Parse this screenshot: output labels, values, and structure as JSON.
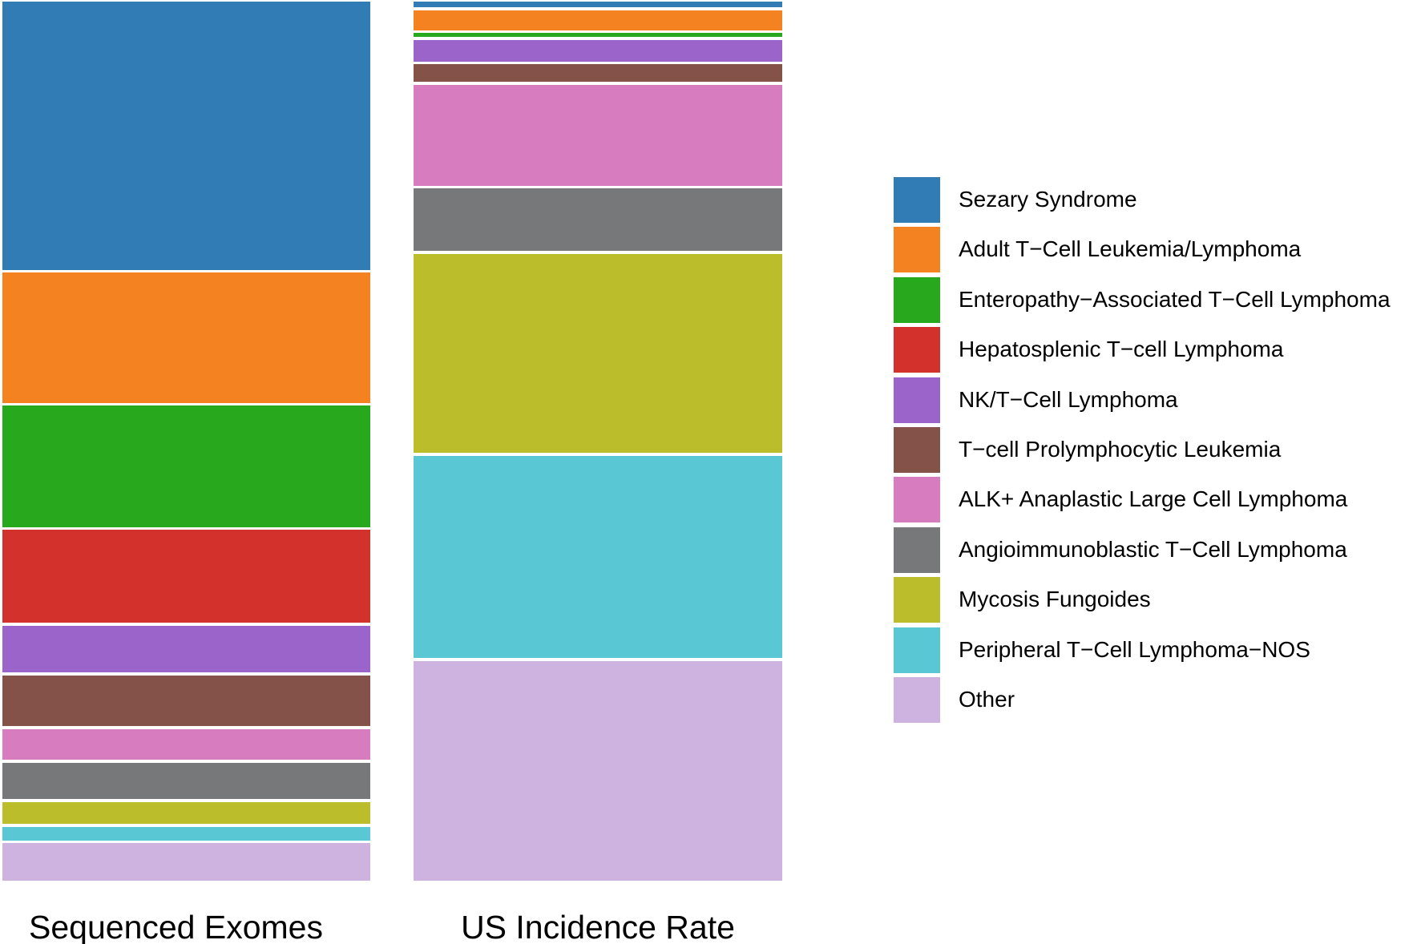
{
  "figure": {
    "background": "#ffffff",
    "text_color": "#000000",
    "column_labels": [
      "Sequenced Exomes",
      "US Incidence Rate"
    ]
  },
  "chart_data": {
    "type": "bar",
    "subtype": "100-percent-stacked-columns (mosaic comparison, no axes)",
    "title": "",
    "xlabel": "",
    "ylabel": "",
    "categories": [
      "Sequenced Exomes",
      "US Incidence Rate"
    ],
    "values_unit": "percent of column height",
    "stack_order": "top to bottom as listed",
    "legend_position": "right",
    "grid": false,
    "axes_visible": false,
    "segment_gap_color": "#ffffff",
    "series": [
      {
        "name": "Sezary Syndrome",
        "color": "#317CB4",
        "values": [
          31.5,
          0.7
        ]
      },
      {
        "name": "Adult T−Cell Leukemia/Lymphoma",
        "color": "#F58220",
        "values": [
          15.3,
          2.3
        ]
      },
      {
        "name": "Enteropathy−Associated T−Cell Lymphoma",
        "color": "#28A81C",
        "values": [
          14.3,
          0.5
        ]
      },
      {
        "name": "Hepatosplenic T−cell Lymphoma",
        "color": "#D3312C",
        "values": [
          10.9,
          0.0
        ]
      },
      {
        "name": "NK/T−Cell Lymphoma",
        "color": "#9B64CB",
        "values": [
          5.5,
          2.5
        ]
      },
      {
        "name": "T−cell Prolymphocytic Leukemia",
        "color": "#855249",
        "values": [
          6.0,
          2.1
        ]
      },
      {
        "name": "ALK+ Anaplastic Large Cell Lymphoma",
        "color": "#D77CBE",
        "values": [
          3.6,
          11.8
        ]
      },
      {
        "name": "Angioimmunoblastic T−Cell Lymphoma",
        "color": "#77787A",
        "values": [
          4.3,
          7.3
        ]
      },
      {
        "name": "Mycosis Fungoides",
        "color": "#BBBD2B",
        "values": [
          2.6,
          23.3
        ]
      },
      {
        "name": "Peripheral T−Cell Lymphoma−NOS",
        "color": "#5AC8D4",
        "values": [
          1.6,
          23.7
        ]
      },
      {
        "name": "Other",
        "color": "#CEB2E0",
        "values": [
          4.4,
          25.7
        ]
      }
    ]
  }
}
